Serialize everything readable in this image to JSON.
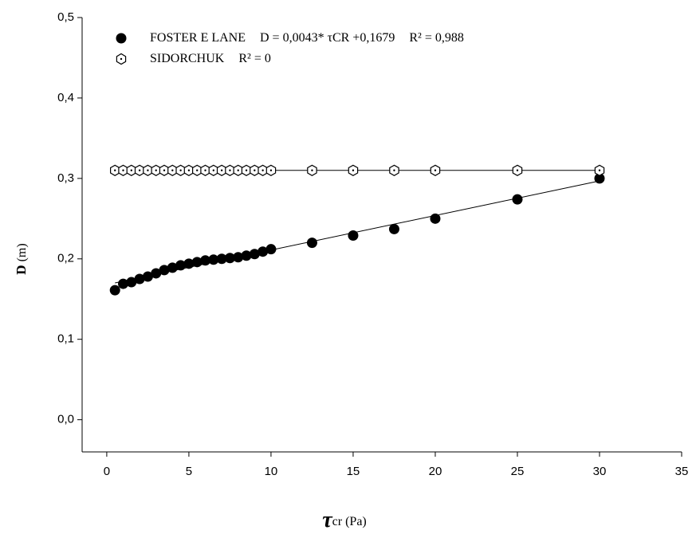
{
  "chart_data": {
    "type": "scatter",
    "x_label": {
      "symbol": "τ",
      "text": "cr (Pa)"
    },
    "y_label": {
      "symbol": "D",
      "text": "(m)"
    },
    "xlim": [
      -1.5,
      35
    ],
    "xticks": [
      0,
      5,
      10,
      15,
      20,
      25,
      30,
      35
    ],
    "ylim": [
      -0.04,
      0.5
    ],
    "yticks": [
      {
        "value": 0,
        "label": "0,0"
      },
      {
        "value": 0.1,
        "label": "0,1"
      },
      {
        "value": 0.2,
        "label": "0,2"
      },
      {
        "value": 0.3,
        "label": "0,3"
      },
      {
        "value": 0.4,
        "label": "0,4"
      },
      {
        "value": 0.5,
        "label": "0,5"
      }
    ],
    "series": [
      {
        "name": "FOSTER E LANE",
        "equation": "D = 0,0043* τCR +0,1679",
        "r2": "R² = 0,988",
        "marker": "filled-circle",
        "color": "#000000",
        "trendline": {
          "slope": 0.0043,
          "intercept": 0.1679
        },
        "x": [
          0.5,
          1,
          1.5,
          2,
          2.5,
          3,
          3.5,
          4,
          4.5,
          5,
          5.5,
          6,
          6.5,
          7,
          7.5,
          8,
          8.5,
          9,
          9.5,
          10,
          12.5,
          15,
          17.5,
          20,
          25,
          30
        ],
        "values": [
          0.161,
          0.169,
          0.171,
          0.175,
          0.178,
          0.182,
          0.186,
          0.189,
          0.192,
          0.194,
          0.196,
          0.198,
          0.199,
          0.2,
          0.201,
          0.202,
          0.204,
          0.206,
          0.209,
          0.212,
          0.22,
          0.229,
          0.237,
          0.25,
          0.274,
          0.3
        ]
      },
      {
        "name": "SIDORCHUK",
        "r2": "R² = 0",
        "marker": "hexagon",
        "color": "#000000",
        "trendline": {
          "slope": 0,
          "intercept": 0.31
        },
        "x": [
          0.5,
          1,
          1.5,
          2,
          2.5,
          3,
          3.5,
          4,
          4.5,
          5,
          5.5,
          6,
          6.5,
          7,
          7.5,
          8,
          8.5,
          9,
          9.5,
          10,
          12.5,
          15,
          17.5,
          20,
          25,
          30
        ],
        "values": [
          0.31,
          0.31,
          0.31,
          0.31,
          0.31,
          0.31,
          0.31,
          0.31,
          0.31,
          0.31,
          0.31,
          0.31,
          0.31,
          0.31,
          0.31,
          0.31,
          0.31,
          0.31,
          0.31,
          0.31,
          0.31,
          0.31,
          0.31,
          0.31,
          0.31,
          0.31
        ]
      }
    ]
  }
}
